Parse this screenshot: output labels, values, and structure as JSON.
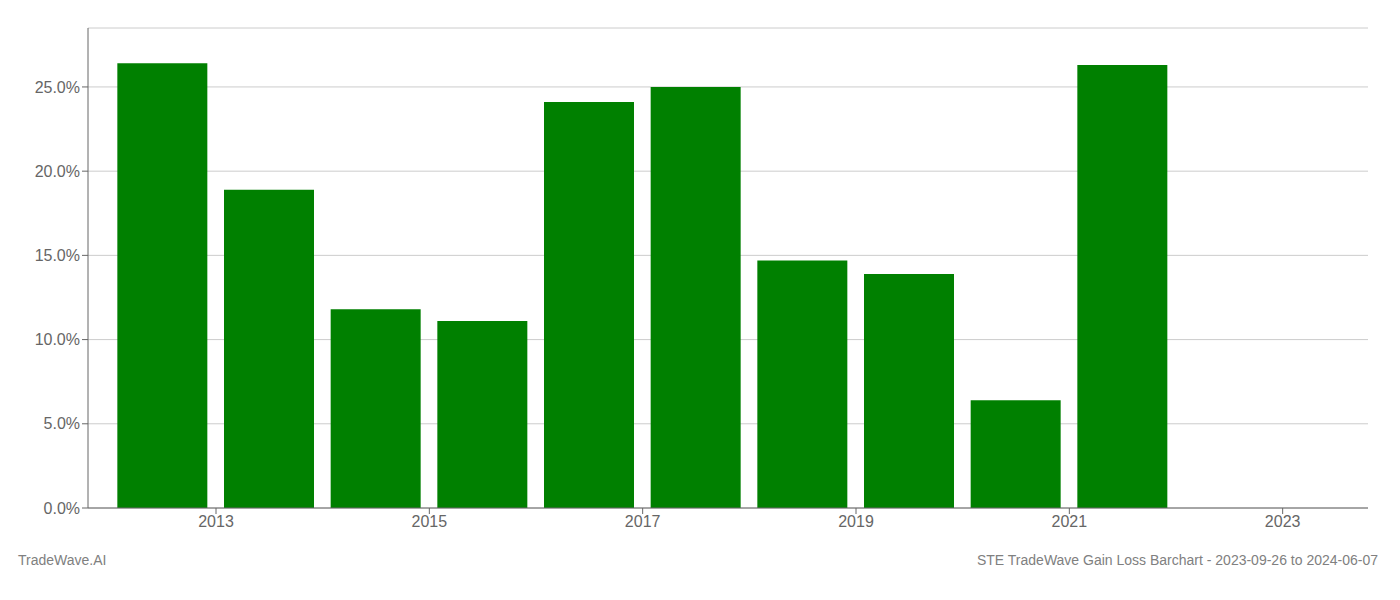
{
  "chart_data": {
    "type": "bar",
    "x": [
      2012.5,
      2013.5,
      2014.5,
      2015.5,
      2016.5,
      2017.5,
      2018.5,
      2019.5,
      2020.5,
      2021.5
    ],
    "values": [
      0.264,
      0.189,
      0.118,
      0.111,
      0.241,
      0.25,
      0.147,
      0.139,
      0.064,
      0.263
    ],
    "color": "#008000",
    "xlim": [
      2011.8,
      2023.8
    ],
    "xticks": [
      2013,
      2015,
      2017,
      2019,
      2021,
      2023
    ],
    "ylim": [
      0,
      0.285
    ],
    "yticks": [
      {
        "value": 0.0,
        "label": "0.0%"
      },
      {
        "value": 0.05,
        "label": "5.0%"
      },
      {
        "value": 0.1,
        "label": "10.0%"
      },
      {
        "value": 0.15,
        "label": "15.0%"
      },
      {
        "value": 0.2,
        "label": "20.0%"
      },
      {
        "value": 0.25,
        "label": "25.0%"
      }
    ],
    "grid": true,
    "annotations": [
      "TradeWave.AI",
      "STE TradeWave Gain Loss Barchart - 2023-09-26 to 2024-06-07"
    ]
  }
}
